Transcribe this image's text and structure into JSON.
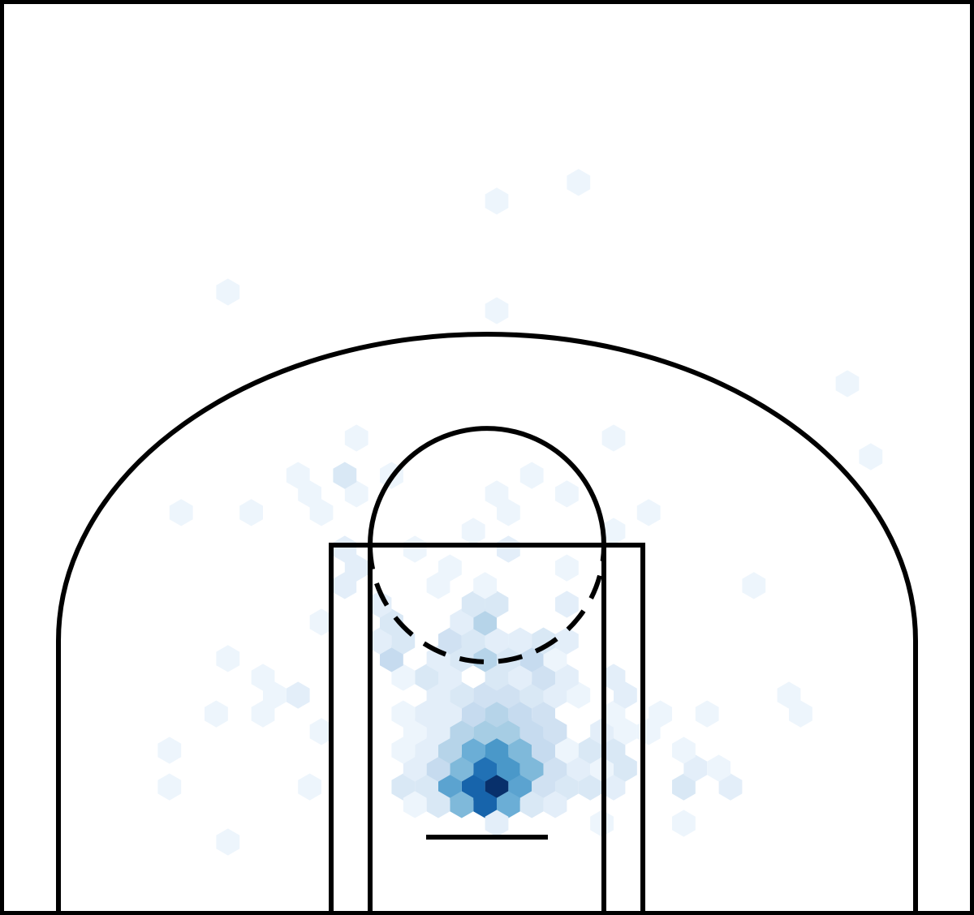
{
  "chart_data": {
    "type": "hexbin",
    "xlim": [
      -250,
      250
    ],
    "ylim": [
      -47.5,
      422.5
    ],
    "clim": [
      0,
      20
    ],
    "colormap": [
      "#f7fbff",
      "#deebf7",
      "#c6dbef",
      "#9ecae1",
      "#6baed6",
      "#4292c6",
      "#2171b5",
      "#08519c",
      "#08306b"
    ],
    "rows": [
      {
        "y": 18.3,
        "x": [
          5,
          -7,
          -19,
          17,
          29,
          41,
          53,
          65,
          -31,
          -43,
          101,
          125,
          -91,
          -163
        ],
        "counts": [
          20,
          16,
          11,
          11,
          4,
          3,
          3,
          2,
          3,
          3,
          3,
          2,
          1,
          1
        ]
      },
      {
        "y": 9.2,
        "x": [
          -1,
          -13,
          11,
          23,
          -25,
          35,
          -37
        ],
        "counts": [
          16,
          9,
          10,
          3,
          3,
          2,
          1
        ]
      },
      {
        "y": 27.9,
        "x": [
          -1,
          11,
          -13,
          23,
          35,
          -25,
          47,
          -37,
          59,
          71,
          107,
          119
        ],
        "counts": [
          15,
          12,
          9,
          9,
          4,
          5,
          2,
          2,
          1,
          3,
          2,
          1
        ]
      },
      {
        "y": 37.1,
        "x": [
          5,
          -7,
          17,
          -19,
          29,
          41,
          53,
          65,
          -31,
          -43,
          101,
          -163
        ],
        "counts": [
          12,
          10,
          9,
          6,
          5,
          1,
          3,
          3,
          2,
          1,
          1,
          1
        ]
      },
      {
        "y": 46.7,
        "x": [
          -1,
          11,
          -13,
          23,
          35,
          -25,
          -37,
          59,
          71,
          83,
          -85
        ],
        "counts": [
          7,
          7,
          6,
          5,
          4,
          2,
          1,
          2,
          1,
          1,
          1
        ]
      },
      {
        "y": 55.8,
        "x": [
          5,
          -7,
          17,
          29,
          -19,
          -31,
          -43,
          65,
          89,
          113,
          161,
          -115,
          -139
        ],
        "counts": [
          6,
          5,
          5,
          4,
          2,
          2,
          1,
          1,
          1,
          1,
          1,
          1,
          1
        ]
      },
      {
        "y": 65.4,
        "x": [
          -1,
          11,
          23,
          -13,
          -25,
          35,
          47,
          71,
          155,
          -97,
          -109
        ],
        "counts": [
          4,
          4,
          3,
          3,
          2,
          2,
          1,
          2,
          1,
          2,
          1
        ]
      },
      {
        "y": 74.6,
        "x": [
          5,
          17,
          29,
          -19,
          -31,
          41,
          65,
          -43,
          -115
        ],
        "counts": [
          3,
          2,
          4,
          2,
          3,
          2,
          2,
          1,
          1
        ]
      },
      {
        "y": 84.2,
        "x": [
          -1,
          11,
          23,
          -13,
          -25,
          35,
          -49,
          -133
        ],
        "counts": [
          6,
          3,
          5,
          3,
          2,
          1,
          5,
          1
        ]
      },
      {
        "y": 93.3,
        "x": [
          5,
          17,
          29,
          -7,
          -19,
          41,
          -43,
          -55
        ],
        "counts": [
          2,
          2,
          3,
          3,
          4,
          2,
          3,
          2
        ]
      },
      {
        "y": 102.9,
        "x": [
          -1,
          -13,
          -49,
          -85
        ],
        "counts": [
          6,
          2,
          3,
          1
        ]
      },
      {
        "y": 112.1,
        "x": [
          5,
          -7,
          41,
          -55
        ],
        "counts": [
          3,
          3,
          2,
          2
        ]
      },
      {
        "y": 121.7,
        "x": [
          -1,
          -25,
          -73,
          137
        ],
        "counts": [
          1,
          1,
          2,
          1
        ]
      },
      {
        "y": 130.8,
        "x": [
          -19,
          41,
          -67
        ],
        "counts": [
          1,
          1,
          2
        ]
      },
      {
        "y": 140.4,
        "x": [
          11,
          -37,
          -73
        ],
        "counts": [
          2,
          1,
          2
        ]
      },
      {
        "y": 149.6,
        "x": [
          -7,
          65
        ],
        "counts": [
          1,
          1
        ]
      },
      {
        "y": 159.2,
        "x": [
          11,
          83,
          -85,
          -121,
          -157
        ],
        "counts": [
          1,
          1,
          1,
          1,
          1
        ]
      },
      {
        "y": 168.8,
        "x": [
          5,
          41,
          -67,
          -91
        ],
        "counts": [
          1,
          1,
          1,
          1
        ]
      },
      {
        "y": 178.3,
        "x": [
          23,
          -49,
          -73,
          -97
        ],
        "counts": [
          1,
          1,
          3,
          1
        ]
      },
      {
        "y": 187.9,
        "x": [
          197
        ],
        "counts": [
          1
        ]
      },
      {
        "y": 197.5,
        "x": [
          -67,
          65
        ],
        "counts": [
          1,
          1
        ]
      },
      {
        "y": 225.4,
        "x": [
          185
        ],
        "counts": [
          1
        ]
      },
      {
        "y": 262.9,
        "x": [
          5
        ],
        "counts": [
          1
        ]
      },
      {
        "y": 272.5,
        "x": [
          -133
        ],
        "counts": [
          1
        ]
      },
      {
        "y": 319.2,
        "x": [
          5
        ],
        "counts": [
          1
        ]
      },
      {
        "y": 328.8,
        "x": [
          47
        ],
        "counts": [
          1
        ]
      },
      {
        "y": -0.4,
        "x": [
          5,
          59,
          101
        ],
        "counts": [
          2,
          1,
          1
        ]
      },
      {
        "y": -10,
        "x": [
          -133
        ],
        "counts": [
          1
        ]
      }
    ]
  }
}
